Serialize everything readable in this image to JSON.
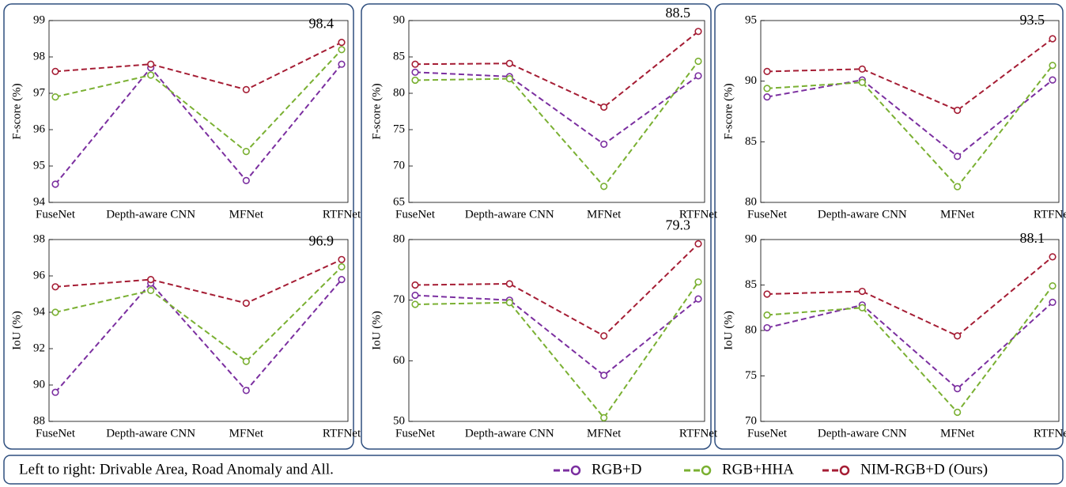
{
  "caption": "Left to right: Drivable Area, Road Anomaly and All.",
  "chart_data": [
    {
      "type": "line",
      "ylabel": "F-score (%)",
      "categories": [
        "FuseNet",
        "Depth-aware CNN",
        "MFNet",
        "RTFNet"
      ],
      "ylim": [
        94,
        99
      ],
      "yticks": [
        94,
        95,
        96,
        97,
        98,
        99
      ],
      "series": [
        {
          "name": "RGB+D",
          "color": "#7b2fa0",
          "values": [
            94.5,
            97.7,
            94.6,
            97.8
          ]
        },
        {
          "name": "RGB+HHA",
          "color": "#7ab032",
          "values": [
            96.9,
            97.5,
            95.4,
            98.2
          ]
        },
        {
          "name": "NIM-RGB+D (Ours)",
          "color": "#a51d34",
          "values": [
            97.6,
            97.8,
            97.1,
            98.4
          ]
        }
      ]
    },
    {
      "type": "line",
      "ylabel": "IoU (%)",
      "categories": [
        "FuseNet",
        "Depth-aware CNN",
        "MFNet",
        "RTFNet"
      ],
      "ylim": [
        88,
        98
      ],
      "yticks": [
        88,
        90,
        92,
        94,
        96,
        98
      ],
      "series": [
        {
          "color": "#7b2fa0",
          "values": [
            89.6,
            95.6,
            89.7,
            95.8
          ]
        },
        {
          "color": "#7ab032",
          "values": [
            94.0,
            95.2,
            91.3,
            96.5
          ]
        },
        {
          "color": "#a51d34",
          "values": [
            95.4,
            95.8,
            94.5,
            96.9
          ]
        }
      ]
    },
    {
      "type": "line",
      "ylabel": "F-score (%)",
      "categories": [
        "FuseNet",
        "Depth-aware CNN",
        "MFNet",
        "RTFNet"
      ],
      "ylim": [
        65,
        90
      ],
      "yticks": [
        65,
        70,
        75,
        80,
        85,
        90
      ],
      "series": [
        {
          "color": "#7b2fa0",
          "values": [
            82.9,
            82.3,
            73.0,
            82.4
          ]
        },
        {
          "color": "#7ab032",
          "values": [
            81.8,
            82.0,
            67.2,
            84.4
          ]
        },
        {
          "color": "#a51d34",
          "values": [
            84.0,
            84.1,
            78.1,
            88.5
          ]
        }
      ]
    },
    {
      "type": "line",
      "ylabel": "IoU (%)",
      "categories": [
        "FuseNet",
        "Depth-aware CNN",
        "MFNet",
        "RTFNet"
      ],
      "ylim": [
        50,
        80
      ],
      "yticks": [
        50,
        60,
        70,
        80
      ],
      "series": [
        {
          "color": "#7b2fa0",
          "values": [
            70.8,
            70.0,
            57.6,
            70.2
          ]
        },
        {
          "color": "#7ab032",
          "values": [
            69.3,
            69.6,
            50.6,
            73.0
          ]
        },
        {
          "color": "#a51d34",
          "values": [
            72.5,
            72.7,
            64.1,
            79.3
          ]
        }
      ]
    },
    {
      "type": "line",
      "ylabel": "F-score (%)",
      "categories": [
        "FuseNet",
        "Depth-aware CNN",
        "MFNet",
        "RTFNet"
      ],
      "ylim": [
        80,
        95
      ],
      "yticks": [
        80,
        85,
        90,
        95
      ],
      "series": [
        {
          "color": "#7b2fa0",
          "values": [
            88.7,
            90.1,
            83.8,
            90.1
          ]
        },
        {
          "color": "#7ab032",
          "values": [
            89.4,
            89.9,
            81.3,
            91.3
          ]
        },
        {
          "color": "#a51d34",
          "values": [
            90.8,
            91.0,
            87.6,
            93.5
          ]
        }
      ]
    },
    {
      "type": "line",
      "ylabel": "IoU (%)",
      "categories": [
        "FuseNet",
        "Depth-aware CNN",
        "MFNet",
        "RTFNet"
      ],
      "ylim": [
        70,
        90
      ],
      "yticks": [
        70,
        75,
        80,
        85,
        90
      ],
      "series": [
        {
          "color": "#7b2fa0",
          "values": [
            80.3,
            82.8,
            73.6,
            83.1
          ]
        },
        {
          "color": "#7ab032",
          "values": [
            81.7,
            82.5,
            71.0,
            84.9
          ]
        },
        {
          "color": "#a51d34",
          "values": [
            84.0,
            84.3,
            79.4,
            88.1
          ]
        }
      ]
    }
  ]
}
